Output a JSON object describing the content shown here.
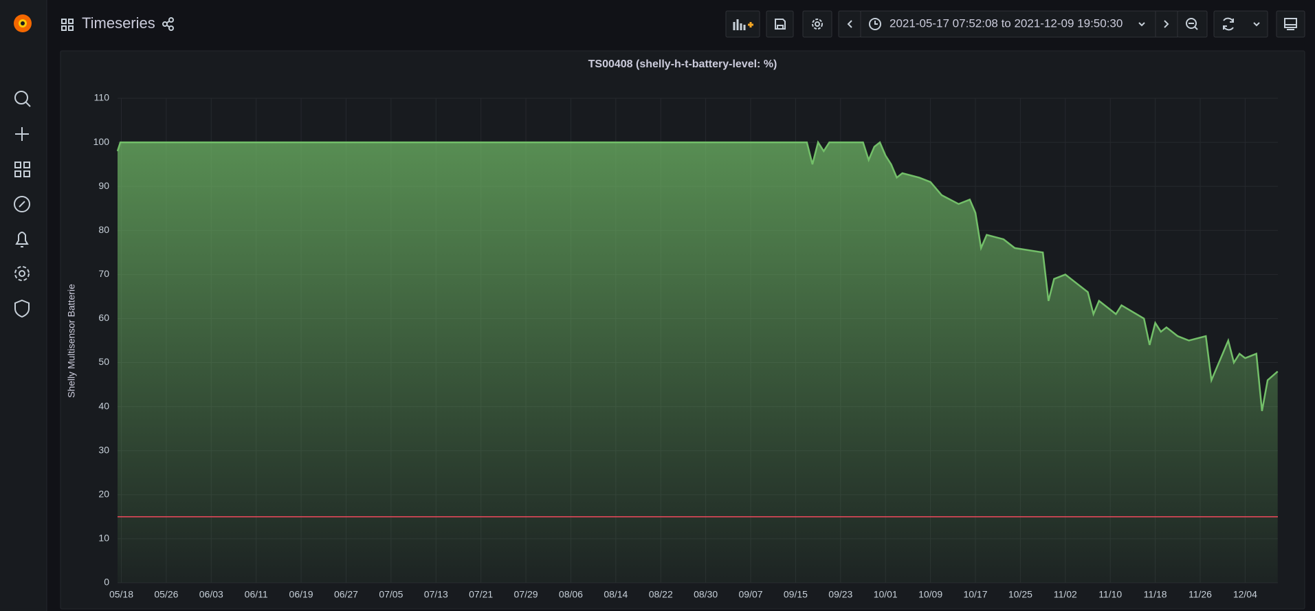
{
  "header": {
    "title": "Timeseries",
    "time_range": "2021-05-17 07:52:08 to 2021-12-09 19:50:30"
  },
  "chart_data": {
    "type": "line",
    "title": "TS00408 (shelly-h-t-battery-level: %)",
    "y_label": "Shelly Multisensor Batterie",
    "x": [
      "05/17 08:00",
      "05/17 20:00",
      "09/17",
      "09/18",
      "09/19",
      "09/20",
      "09/21",
      "09/27",
      "09/28",
      "09/29",
      "09/30",
      "10/01",
      "10/02",
      "10/03",
      "10/04",
      "10/07",
      "10/09",
      "10/11",
      "10/14",
      "10/16",
      "10/17",
      "10/18",
      "10/19",
      "10/22",
      "10/24",
      "10/29",
      "10/30",
      "10/31",
      "11/02",
      "11/04",
      "11/06",
      "11/07",
      "11/08",
      "11/11",
      "11/12",
      "11/16",
      "11/17",
      "11/18",
      "11/19",
      "11/20",
      "11/22",
      "11/24",
      "11/27",
      "11/28",
      "11/30",
      "12/01",
      "12/02",
      "12/03",
      "12/04",
      "12/06",
      "12/07",
      "12/08",
      "12/09 19:00"
    ],
    "series": [
      {
        "color": "#73bf69",
        "values": [
          98,
          100,
          100,
          95,
          100,
          98,
          100,
          100,
          96,
          99,
          100,
          97,
          95,
          92,
          93,
          92,
          91,
          88,
          86,
          87,
          84,
          76,
          79,
          78,
          76,
          75,
          64,
          69,
          70,
          68,
          66,
          61,
          64,
          61,
          63,
          60,
          54,
          59,
          57,
          58,
          56,
          55,
          56,
          46,
          52,
          55,
          50,
          52,
          51,
          52,
          39,
          46,
          48
        ]
      }
    ],
    "xlim": [
      "05/17 07:52",
      "12/09 19:50"
    ],
    "xticks": [
      "05/18",
      "05/26",
      "06/03",
      "06/11",
      "06/19",
      "06/27",
      "07/05",
      "07/13",
      "07/21",
      "07/29",
      "08/06",
      "08/14",
      "08/22",
      "08/30",
      "09/07",
      "09/15",
      "09/23",
      "10/01",
      "10/09",
      "10/17",
      "10/25",
      "11/02",
      "11/10",
      "11/18",
      "11/26",
      "12/04"
    ],
    "ylim": [
      0,
      110
    ],
    "yticks": [
      0,
      10,
      20,
      30,
      40,
      50,
      60,
      70,
      80,
      90,
      100,
      110
    ],
    "grid": true,
    "area_fill": true,
    "threshold": 15,
    "threshold_color": "#f2495c"
  }
}
